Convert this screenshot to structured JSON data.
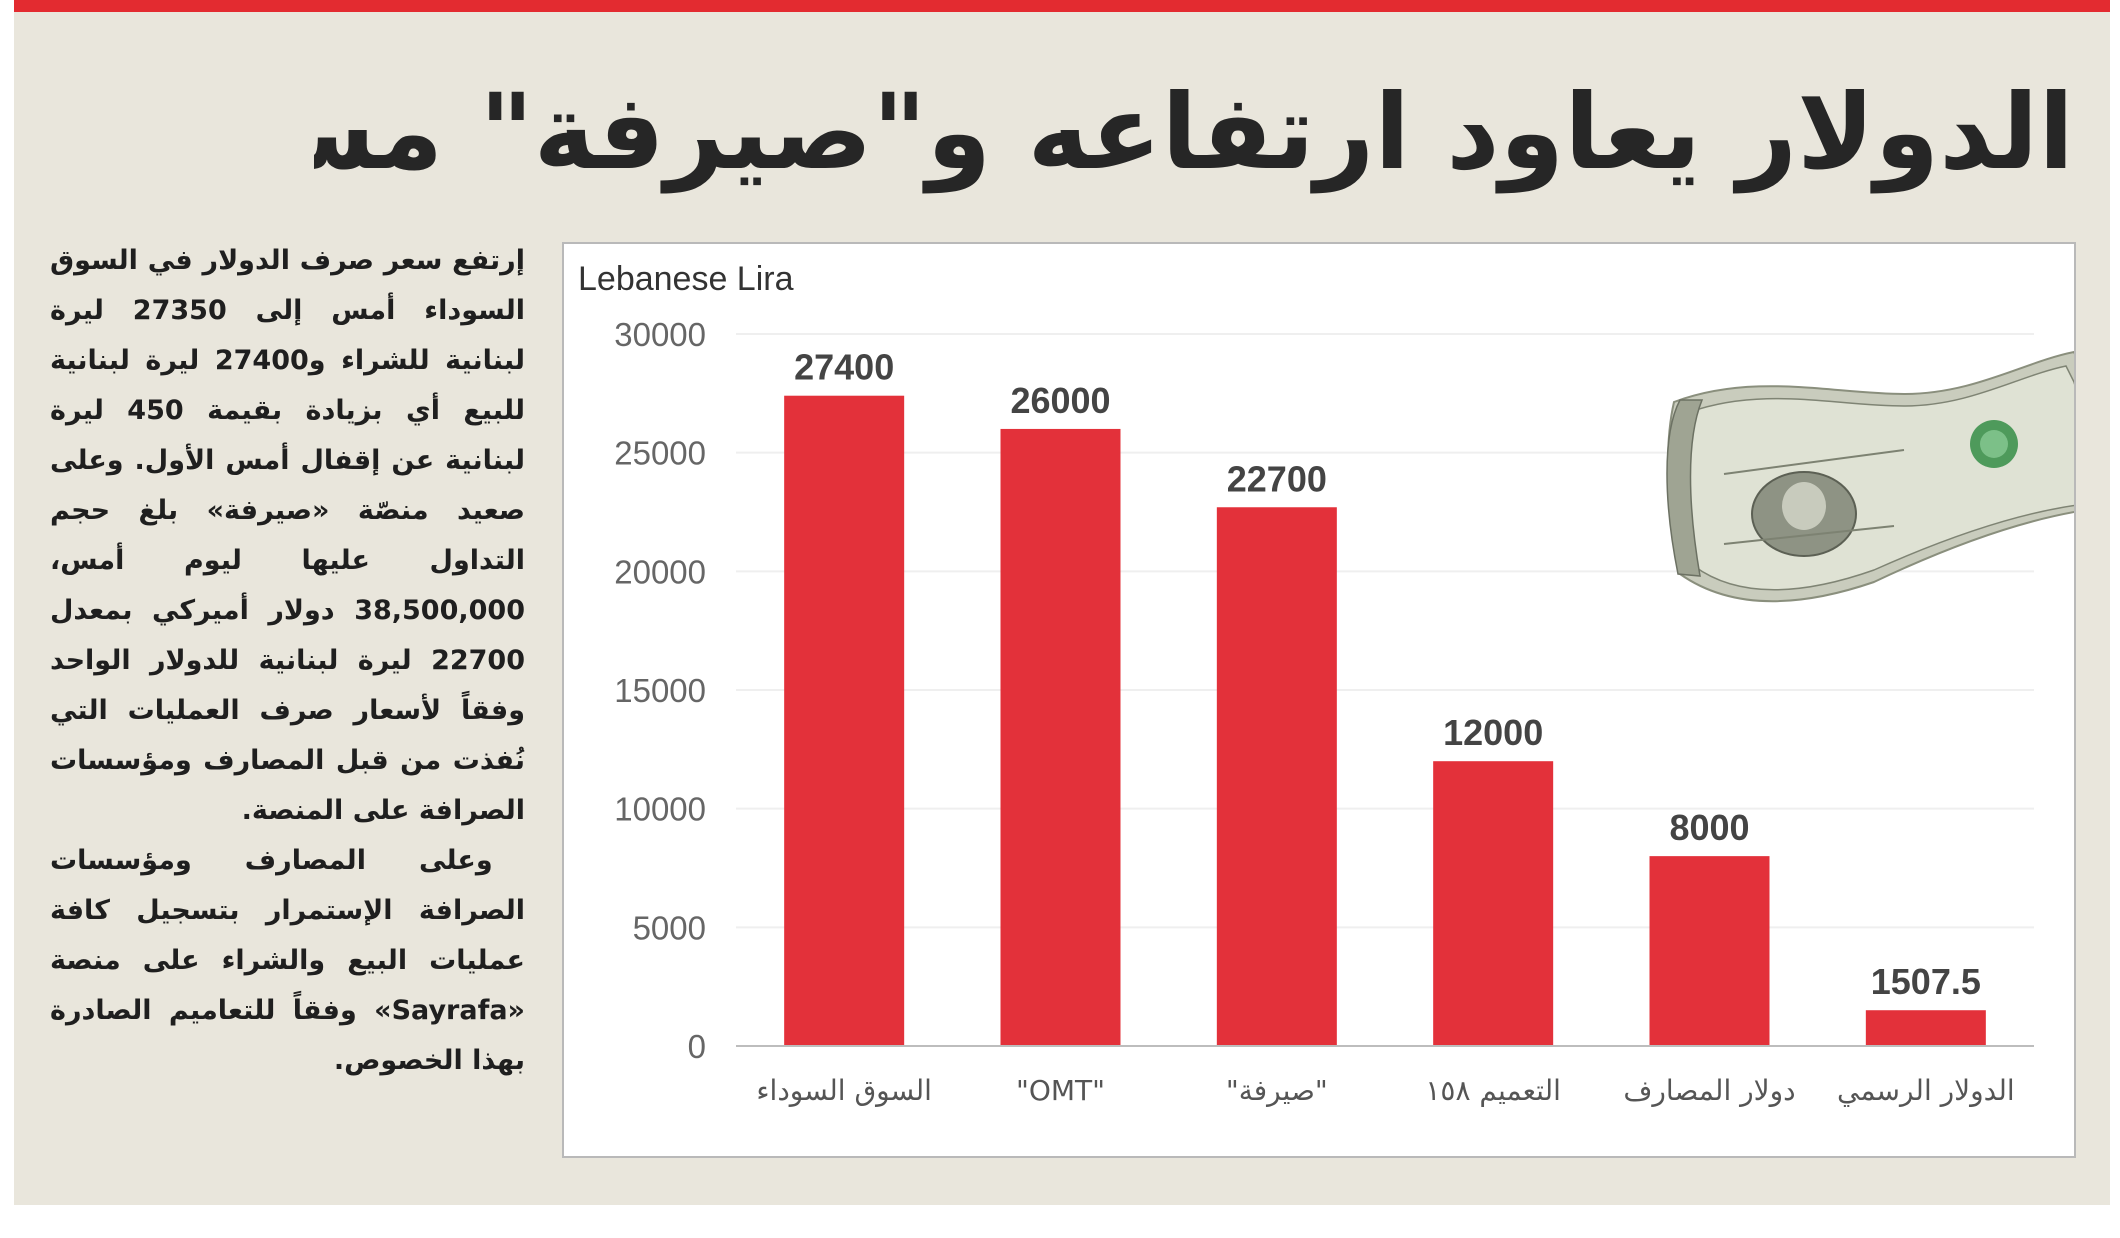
{
  "headline": "الدولار يعاود ارتفاعه و\"صيرفة\" مستقرّة",
  "article": {
    "paragraph_1": "إرتفع سعر صرف الدولار في السوق السوداء أمس إلى 27350 ليرة لبنانية للشراء و27400 ليرة لبنانية للبيع أي بزيادة بقيمة 450 ليرة لبنانية عن إقفال أمس الأول. وعلى صعيد منصّة «صيرفة» بلغ حجم التداول عليها ليوم أمس، 38,500,000 دولار أميركي بمعدل 22700 ليرة لبنانية للدولار الواحد وفقاً لأسعار صرف العمليات التي نُفذت من قبل المصارف ومؤسسات الصرافة على المنصة.",
    "paragraph_2": "وعلى المصارف ومؤسسات الصرافة الإستمرار بتسجيل كافة عمليات البيع والشراء على منصة «Sayrafa» وفقاً للتعاميم الصادرة بهذا الخصوص."
  },
  "colors": {
    "accent": "#e32b30",
    "bar": "#e3313a",
    "background": "#e9e6dc"
  },
  "illustration": "us-dollar-banknote",
  "chart_data": {
    "type": "bar",
    "title": "Lebanese Lira",
    "categories": [
      "السوق السوداء",
      "\"OMT\"",
      "\"صيرفة\"",
      "التعميم ١٥٨",
      "دولار المصارف",
      "الدولار الرسمي"
    ],
    "values": [
      27400,
      26000,
      22700,
      12000,
      8000,
      1507.5
    ],
    "value_labels": [
      "27400",
      "26000",
      "22700",
      "12000",
      "8000",
      "1507.5"
    ],
    "yticks": [
      0,
      5000,
      10000,
      15000,
      20000,
      25000,
      30000
    ],
    "ylim": [
      0,
      30000
    ],
    "grid": true,
    "legend": "none"
  }
}
